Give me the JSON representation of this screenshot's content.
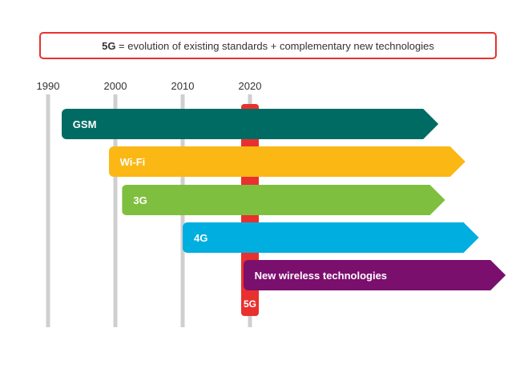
{
  "banner": {
    "bold": "5G",
    "rest": " = evolution of existing standards + complementary new technologies"
  },
  "years": [
    "1990",
    "2000",
    "2010",
    "2020"
  ],
  "technologies": [
    {
      "label": "GSM",
      "color": "#006b63",
      "start_year": 1992,
      "end_year": 2048
    },
    {
      "label": "Wi-Fi",
      "color": "#fbb714",
      "start_year": 1999,
      "end_year": 2052
    },
    {
      "label": "3G",
      "color": "#7fbf3f",
      "start_year": 2001,
      "end_year": 2049
    },
    {
      "label": "4G",
      "color": "#00aee0",
      "start_year": 2010,
      "end_year": 2054
    },
    {
      "label": "New wireless technologies",
      "color": "#7b0f6d",
      "start_year": 2019,
      "end_year": 2058
    }
  ],
  "marker": {
    "label": "5G",
    "year": 2020,
    "color": "#e8312f"
  }
}
